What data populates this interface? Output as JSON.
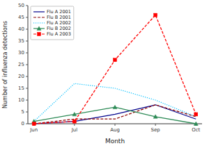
{
  "chart_data": {
    "type": "line",
    "xlabel": "Month",
    "ylabel": "Number of influenza detections",
    "categories": [
      "Jun",
      "Jul",
      "Aug",
      "Sep",
      "Oct"
    ],
    "series": [
      {
        "name": "Flu A 2001",
        "color": "#00008B",
        "line_style": "solid",
        "values": [
          0,
          1,
          4,
          8,
          2
        ]
      },
      {
        "name": "Flu B 2001",
        "color": "#8B0000",
        "line_style": "dashed",
        "values": [
          0,
          2,
          2,
          8,
          3
        ]
      },
      {
        "name": "Flu A 2002",
        "color": "#00BFFF",
        "line_style": "dotted",
        "values": [
          1,
          17,
          15,
          10,
          3
        ]
      },
      {
        "name": "Flu B 2002",
        "color": "#2E8B57",
        "line_style": "solid",
        "marker": "triangle",
        "values": [
          1,
          4,
          7,
          3,
          0
        ]
      },
      {
        "name": "Flu A 2003",
        "color": "#FF0000",
        "line_style": "dashed",
        "marker": "square",
        "values": [
          0,
          1,
          27,
          46,
          4
        ]
      }
    ],
    "ylim": [
      0,
      50
    ],
    "yticks": [
      0,
      5,
      10,
      15,
      20,
      25,
      30,
      35,
      40,
      45,
      50
    ],
    "legend": "upper left"
  }
}
